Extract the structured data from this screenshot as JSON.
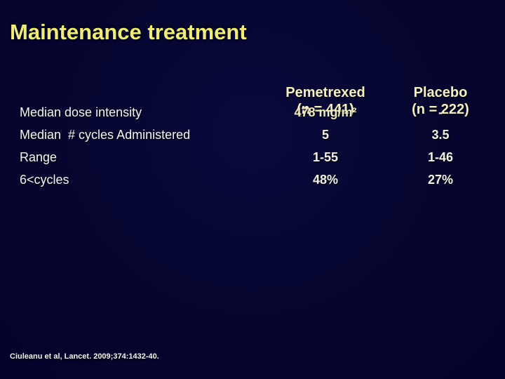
{
  "slide": {
    "title": "Maintenance treatment",
    "citation": "Ciuleanu et al, Lancet. 2009;374:1432-40."
  },
  "table": {
    "columns": [
      {
        "name": "Pemetrexed",
        "n": "(n = 441)"
      },
      {
        "name": "Placebo",
        "n": "(n = 222)"
      }
    ],
    "rows": [
      {
        "label": "Median dose intensity",
        "pemetrexed": "478 mg/m²",
        "placebo": "-"
      },
      {
        "label": "Median  # cycles Administered",
        "pemetrexed": "5",
        "placebo": "3.5"
      },
      {
        "label": "Range",
        "pemetrexed": "1-55",
        "placebo": "1-46"
      },
      {
        "label": "6<cycles",
        "pemetrexed": "48%",
        "placebo": "27%"
      }
    ]
  },
  "colors": {
    "background_navy": "#05052f",
    "title_yellow": "#f0ec7a",
    "header_cream": "#f5efc3",
    "value_cream": "#ece8c0",
    "body_white": "#f4f4f0"
  }
}
